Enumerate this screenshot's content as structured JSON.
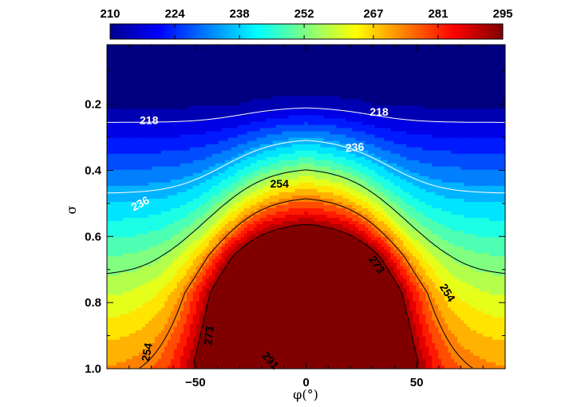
{
  "chart_data": {
    "type": "heatmap",
    "title": "",
    "xlabel": "φ(°)",
    "ylabel": "σ",
    "xlim": [
      -90,
      90
    ],
    "ylim": [
      0.02,
      1.0
    ],
    "y_inverted": true,
    "xticks": [
      -50,
      0,
      50
    ],
    "xtick_labels": [
      "−50",
      "0",
      "50"
    ],
    "yticks": [
      0.2,
      0.4,
      0.6,
      0.8,
      1.0
    ],
    "ytick_labels": [
      "0.2",
      "0.4",
      "0.6",
      "0.8",
      "1.0"
    ],
    "colorbar": {
      "min": 210,
      "max": 295,
      "ticks": [
        210,
        224,
        238,
        252,
        267,
        281,
        295
      ],
      "tick_labels": [
        "210",
        "224",
        "238",
        "252",
        "267",
        "281",
        "295"
      ],
      "colormap": "jet",
      "placement": "top"
    },
    "grid": false,
    "contours": [
      {
        "level": 218,
        "color": "#ffffff",
        "labels": [
          {
            "text": "218",
            "x": -71,
            "y": 0.248,
            "angle": 0
          },
          {
            "text": "218",
            "x": 33,
            "y": 0.223,
            "angle": 0
          }
        ]
      },
      {
        "level": 236,
        "color": "#ffffff",
        "labels": [
          {
            "text": "236",
            "x": 22,
            "y": 0.33,
            "angle": -4
          },
          {
            "text": "236",
            "x": -75,
            "y": 0.5,
            "angle": -28
          }
        ]
      },
      {
        "level": 254,
        "color": "#000000",
        "labels": [
          {
            "text": "254",
            "x": -12,
            "y": 0.44,
            "angle": 0
          },
          {
            "text": "254",
            "x": 64,
            "y": 0.77,
            "angle": 58
          },
          {
            "text": "254",
            "x": -72,
            "y": 0.95,
            "angle": -80
          }
        ]
      },
      {
        "level": 273,
        "color": "#000000",
        "labels": [
          {
            "text": "273",
            "x": 32,
            "y": 0.685,
            "angle": 55
          },
          {
            "text": "273",
            "x": -44,
            "y": 0.9,
            "angle": -84
          }
        ]
      },
      {
        "level": 291,
        "color": "#000000",
        "labels": [
          {
            "text": "291",
            "x": -16,
            "y": 0.975,
            "angle": 48
          }
        ]
      }
    ]
  }
}
